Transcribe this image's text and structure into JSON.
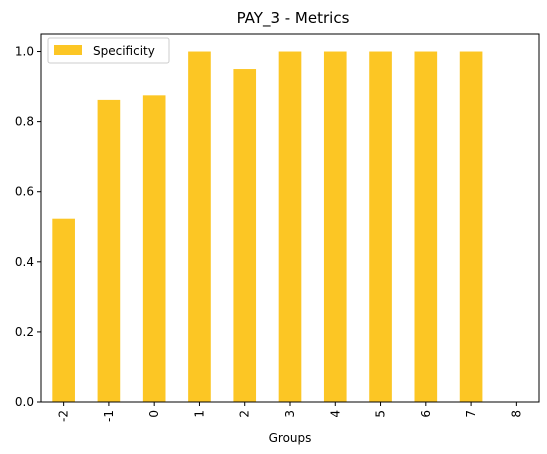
{
  "chart_data": {
    "type": "bar",
    "title": "PAY_3 - Metrics",
    "xlabel": "Groups",
    "ylabel": "",
    "categories": [
      "-2",
      "-1",
      "0",
      "1",
      "2",
      "3",
      "4",
      "5",
      "6",
      "7",
      "8"
    ],
    "series": [
      {
        "name": "Specificity",
        "values": [
          0.523,
          0.862,
          0.875,
          1.0,
          0.95,
          1.0,
          1.0,
          1.0,
          1.0,
          1.0,
          0.0
        ],
        "color": "#fcc624"
      }
    ],
    "ylim": [
      0,
      1.05
    ],
    "yticks": [
      0.0,
      0.2,
      0.4,
      0.6,
      0.8,
      1.0
    ],
    "ytick_labels": [
      "0.0",
      "0.2",
      "0.4",
      "0.6",
      "0.8",
      "1.0"
    ],
    "grid": false,
    "legend_position": "top-left"
  }
}
